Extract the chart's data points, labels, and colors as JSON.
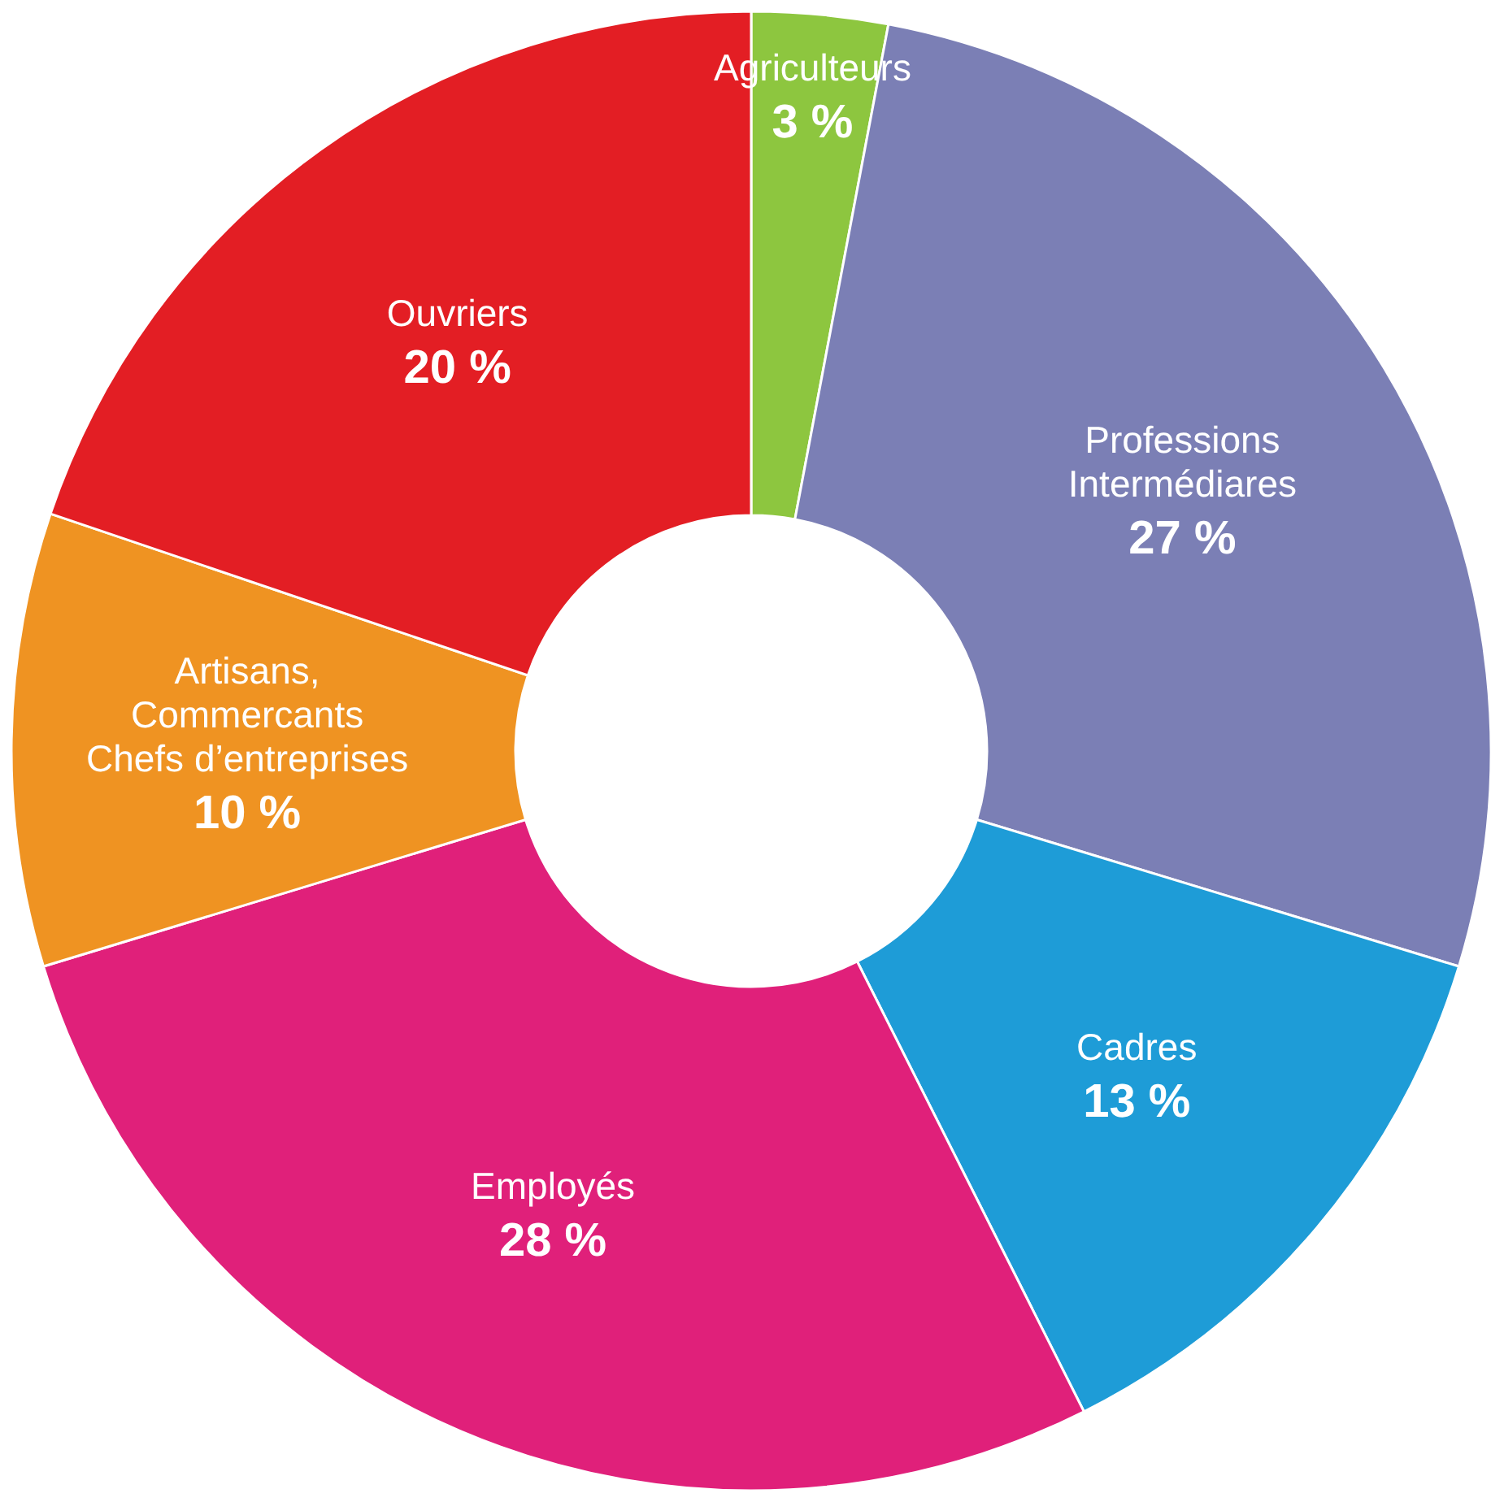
{
  "chart_data": {
    "type": "donut",
    "categories": [
      "Agriculteurs",
      "Professions\nIntermédiares",
      "Cadres",
      "Employés",
      "Artisans,\nCommercants\nChefs d’entreprises",
      "Ouvriers"
    ],
    "values": [
      3,
      27,
      13,
      28,
      10,
      20
    ],
    "value_labels": [
      "3 %",
      "27 %",
      "13 %",
      "28 %",
      "10 %",
      "20 %"
    ],
    "colors": [
      "#8dc63f",
      "#7b7fb5",
      "#1e9cd7",
      "#e0207a",
      "#ef9322",
      "#e31e24"
    ]
  }
}
